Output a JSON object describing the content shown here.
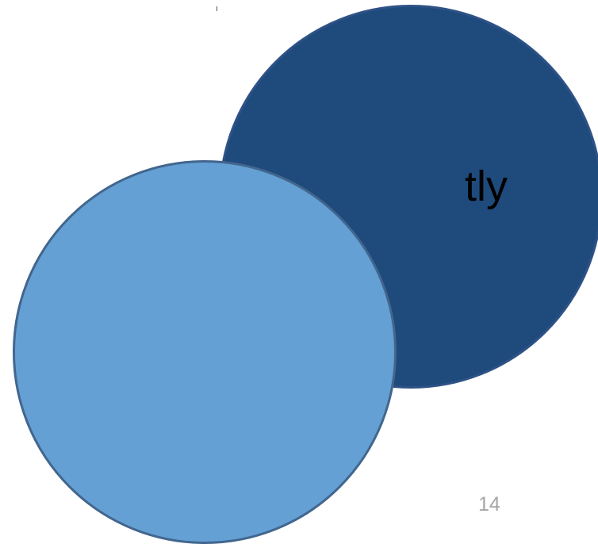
{
  "slide": {
    "text_fragment": "tly",
    "page_number": "14"
  },
  "colors": {
    "back_circle_fill": "#1f4a7c",
    "back_circle_border": "#2e5286",
    "front_circle_fill": "#64a0d4",
    "front_circle_border": "#42668e",
    "page_number_color": "#a6a6a6",
    "text_color": "#000000"
  }
}
